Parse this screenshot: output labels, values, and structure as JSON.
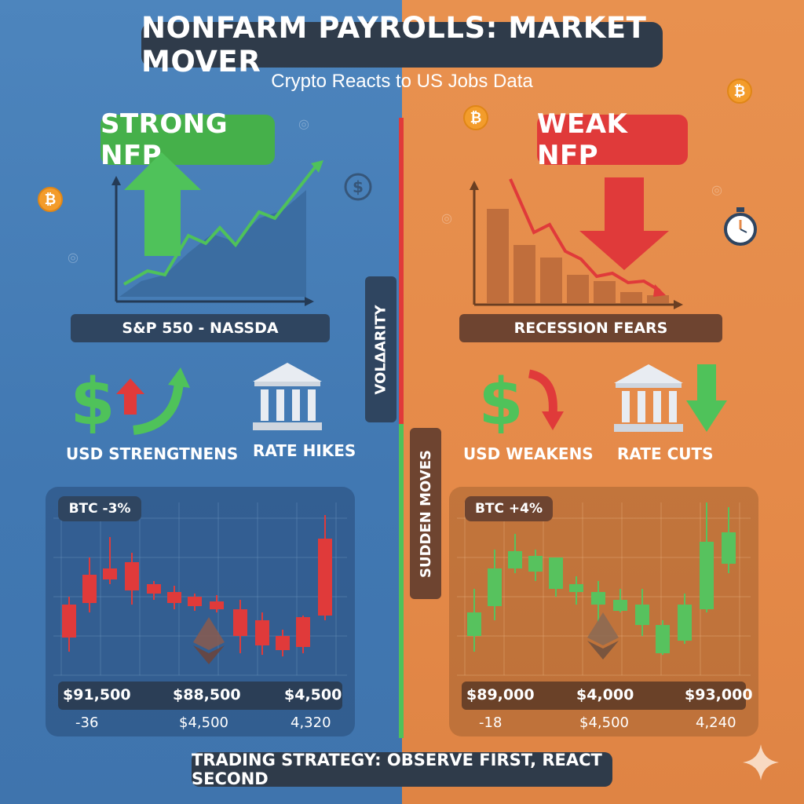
{
  "header": {
    "title": "NONFARM PAYROLLS: MARKET MOVER",
    "subtitle": "Crypto Reacts to US Jobs Data"
  },
  "left": {
    "badge": "STRONG NFP",
    "chart_label": "S&P 550 - NASSDA",
    "usd_caption": "USD STRENGTNENS",
    "rate_caption": "RATE HIKES",
    "btc_tag": "BTC -3%",
    "prices": [
      "$91,500",
      "$88,500",
      "$4,500"
    ],
    "sub_prices": [
      "-36",
      "$4,500",
      "4,320"
    ]
  },
  "right": {
    "badge": "WEAK NFP",
    "chart_label": "RECESSION FEARS",
    "usd_caption": "USD WEAKENS",
    "rate_caption": "RATE CUTS",
    "btc_tag": "BTC +4%",
    "prices": [
      "$89,000",
      "$4,000",
      "$93,000"
    ],
    "sub_prices": [
      "-18",
      "$4,500",
      "4,240"
    ]
  },
  "divider": {
    "top_tag": "VOLΔARITY",
    "bottom_tag": "SUDDEN MOVES"
  },
  "footer": "TRADING STRATEGY: OBSERVE FIRST, REACT SECOND",
  "icons": {
    "coin": "bitcoin-icon",
    "dollar": "dollar-icon",
    "bank": "bank-icon",
    "ethereum": "ethereum-icon",
    "stopwatch": "stopwatch-icon"
  },
  "colors": {
    "left_bg": "#4178b2",
    "right_bg": "#e58a49",
    "green": "#45b04a",
    "red": "#e03a3a",
    "navy": "#2f3b4a"
  }
}
